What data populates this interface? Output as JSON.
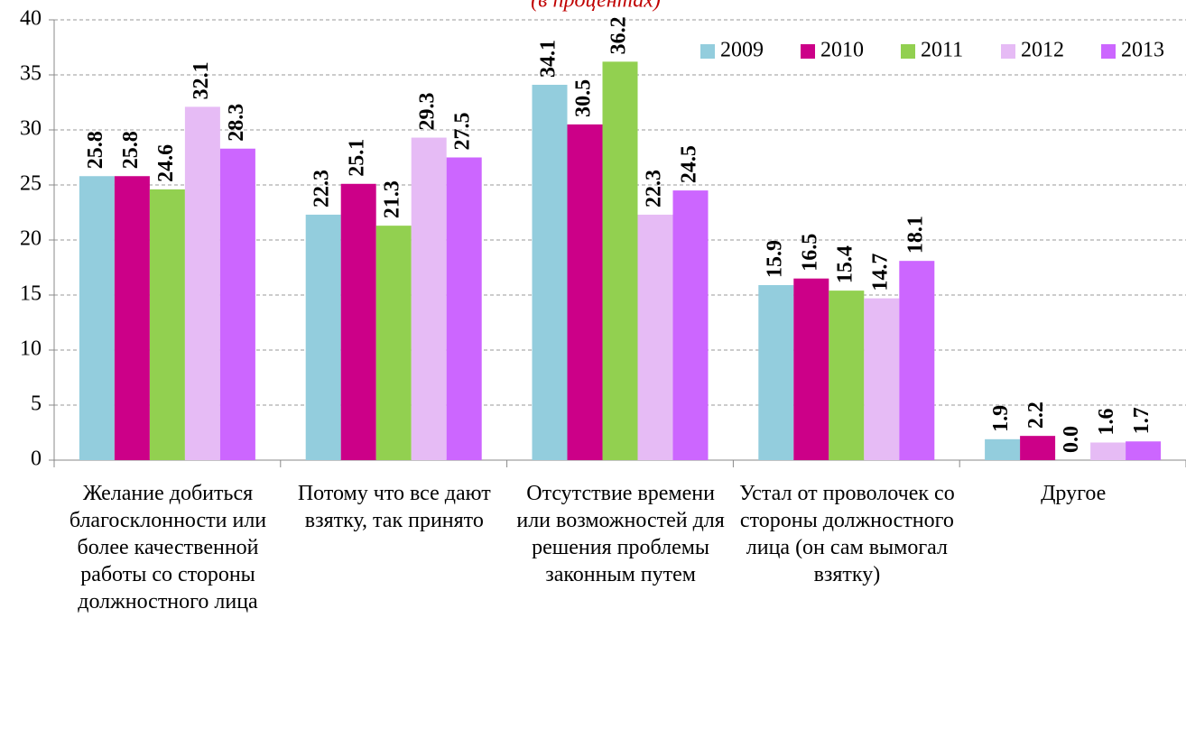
{
  "chart_data": {
    "type": "bar",
    "subtitle": "(в процентах)",
    "categories": [
      "Желание добиться благосклонности или более качественной работы со стороны должностного лица",
      "Потому что все дают взятку, так принято",
      "Отсутствие времени или возможностей для решения проблемы законным путем",
      "Устал от проволочек со стороны должностного лица (он сам вымогал взятку)",
      "Другое"
    ],
    "series": [
      {
        "name": "2009",
        "color": "#93cddd",
        "values": [
          25.8,
          22.3,
          34.1,
          15.9,
          1.9
        ],
        "value_labels": [
          "25.8",
          "22.3",
          "34.1",
          "15.9",
          "1.9"
        ]
      },
      {
        "name": "2010",
        "color": "#cc0088",
        "values": [
          25.8,
          25.1,
          30.5,
          16.5,
          2.2
        ],
        "value_labels": [
          "25.8",
          "25.1",
          "30.5",
          "16.5",
          "2.2"
        ]
      },
      {
        "name": "2011",
        "color": "#92d050",
        "values": [
          24.6,
          21.3,
          36.2,
          15.4,
          0
        ],
        "value_labels": [
          "24.6",
          "21.3",
          "36.2",
          "15.4",
          "0.0"
        ]
      },
      {
        "name": "2012",
        "color": "#e6bbf5",
        "values": [
          32.1,
          29.3,
          22.3,
          14.7,
          1.6
        ],
        "value_labels": [
          "32.1",
          "29.3",
          "22.3",
          "14.7",
          "1.6"
        ]
      },
      {
        "name": "2013",
        "color": "#cc66ff",
        "values": [
          28.3,
          27.5,
          24.5,
          18.1,
          1.7
        ],
        "value_labels": [
          "28.3",
          "27.5",
          "24.5",
          "18.1",
          "1.7"
        ]
      }
    ],
    "ylim": [
      0,
      40
    ],
    "yticks": [
      0,
      5,
      10,
      15,
      20,
      25,
      30,
      35,
      40
    ],
    "grid": true,
    "legend": "top-right"
  }
}
